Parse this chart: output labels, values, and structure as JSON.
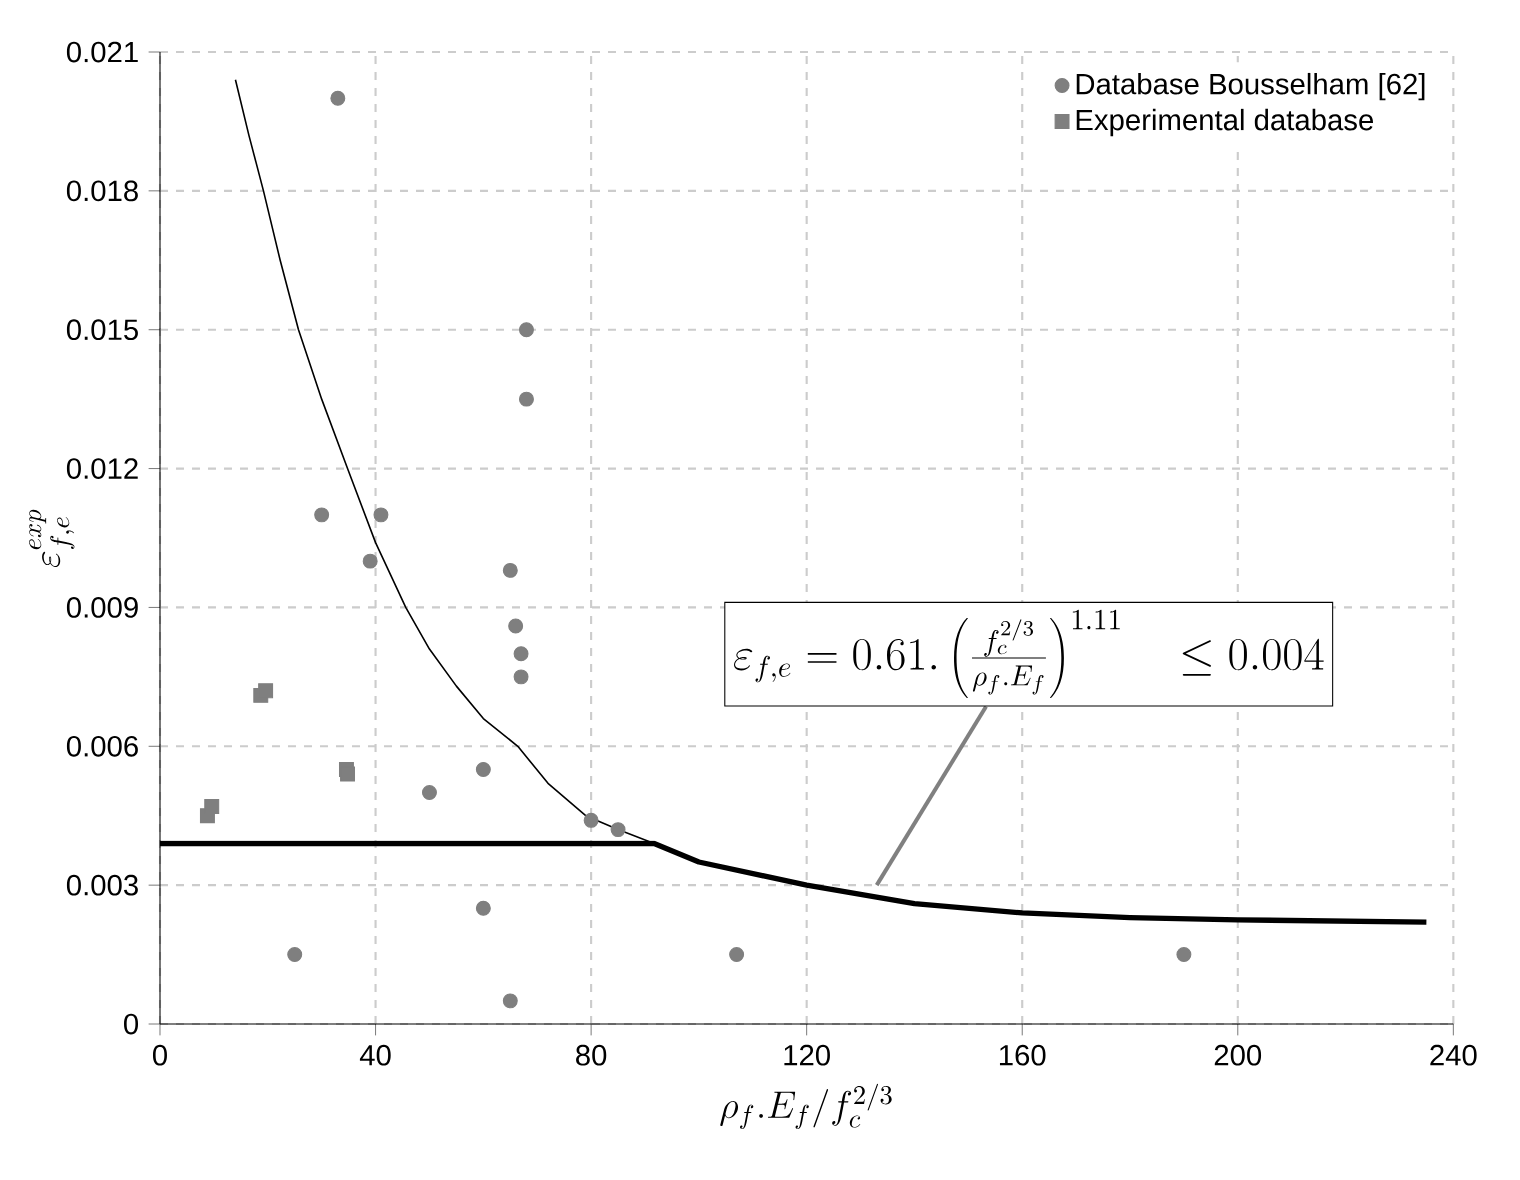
{
  "chart_data": {
    "type": "scatter",
    "xlabel": "\\rho_f.E_f/f_c^{2/3}",
    "ylabel": "\\varepsilon_{f,e}^{exp}",
    "xlim": [
      0,
      240
    ],
    "xticks": [
      0,
      40,
      80,
      120,
      160,
      200,
      240
    ],
    "ylim": [
      0,
      0.021
    ],
    "yticks": [
      0,
      0.003,
      0.006,
      0.009,
      0.012,
      0.015,
      0.018,
      0.021
    ],
    "grid": true,
    "legend": "top right",
    "series": [
      {
        "name": "Database Bousselham [62]",
        "marker": "circle",
        "color": "#7f7f7f",
        "x": [
          33,
          68,
          68,
          30,
          41,
          39,
          65,
          66,
          67,
          67,
          60,
          50,
          80,
          85,
          60,
          25,
          65,
          107,
          190
        ],
        "values": [
          0.02,
          0.015,
          0.0135,
          0.011,
          0.011,
          0.01,
          0.0098,
          0.0086,
          0.008,
          0.0075,
          0.0055,
          0.005,
          0.0044,
          0.0042,
          0.0025,
          0.0015,
          0.0005,
          0.0015,
          0.0015
        ]
      },
      {
        "name": "Experimental database",
        "marker": "square",
        "color": "#7f7f7f",
        "x": [
          8.8,
          9.6,
          18.7,
          19.6,
          34.6,
          34.8
        ],
        "values": [
          0.0045,
          0.0047,
          0.0071,
          0.0072,
          0.0055,
          0.0054
        ]
      },
      {
        "type": "line",
        "marker": "none",
        "color": "#000000",
        "x": [
          14,
          16.5,
          19.2,
          22.3,
          25.7,
          30,
          34.8,
          40,
          45.6,
          50,
          55,
          60,
          66.4,
          72,
          79,
          85,
          91.7
        ],
        "values": [
          0.0204,
          0.0192,
          0.018,
          0.0165,
          0.015,
          0.0135,
          0.012,
          0.0104,
          0.009,
          0.0081,
          0.0073,
          0.0066,
          0.006,
          0.0052,
          0.0045,
          0.0042,
          0.0039
        ]
      },
      {
        "type": "line",
        "marker": "none",
        "color": "#000000",
        "x": [
          0,
          91.7,
          100,
          120,
          140,
          160,
          180,
          200,
          235
        ],
        "values": [
          0.0039,
          0.0039,
          0.0035,
          0.003,
          0.0026,
          0.0024,
          0.0023,
          0.00225,
          0.0022
        ]
      }
    ],
    "annotations": [
      {
        "text": "\\varepsilon_{f,e} = 0.61.\\left(\\frac{f_c^{2/3}}{\\rho_f.E_f}\\right)^{1.11} \\quad \\leq 0.004",
        "x": 133,
        "y": 0.003
      }
    ]
  }
}
